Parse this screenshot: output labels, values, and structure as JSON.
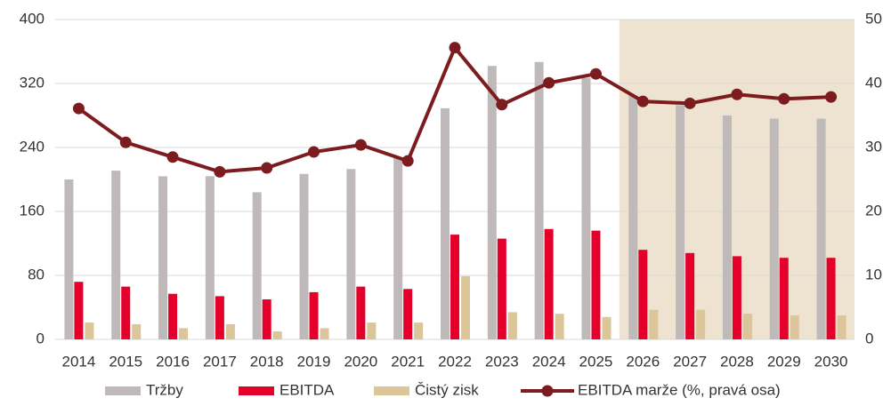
{
  "chart_data": {
    "type": "bar_line",
    "categories": [
      "2014",
      "2015",
      "2016",
      "2017",
      "2018",
      "2019",
      "2020",
      "2021",
      "2022",
      "2023",
      "2024",
      "2025",
      "2026",
      "2027",
      "2028",
      "2029",
      "2030"
    ],
    "series": [
      {
        "name": "Tržby",
        "color": "#bfb9b9",
        "values": [
          200,
          211,
          204,
          204,
          184,
          207,
          213,
          227,
          289,
          342,
          347,
          327,
          305,
          293,
          280,
          276,
          276
        ]
      },
      {
        "name": "EBITDA",
        "color": "#e4002b",
        "values": [
          72,
          66,
          57,
          54,
          50,
          59,
          66,
          63,
          131,
          126,
          138,
          136,
          112,
          108,
          104,
          102,
          102
        ]
      },
      {
        "name": "Čistý zisk",
        "color": "#dbc599",
        "values": [
          21,
          19,
          14,
          19,
          10,
          14,
          21,
          21,
          79,
          34,
          32,
          28,
          37,
          37,
          32,
          30,
          30
        ]
      },
      {
        "name": "EBITDA marže (%, pravá osa)",
        "color": "#7d1c1f",
        "axis": "y2",
        "type": "line",
        "values": [
          36.1,
          30.8,
          28.5,
          26.2,
          26.8,
          29.3,
          30.4,
          27.9,
          45.6,
          36.7,
          40.1,
          41.5,
          37.2,
          36.9,
          38.3,
          37.6,
          37.9
        ]
      }
    ],
    "ylim": [
      0,
      400
    ],
    "yticks": [
      0,
      80,
      160,
      240,
      320,
      400
    ],
    "y2lim": [
      0,
      50
    ],
    "y2ticks": [
      0,
      10,
      20,
      30,
      40,
      50
    ],
    "grid": true,
    "highlight_from": "2026",
    "highlight_color": "#ede3d0",
    "legend": "bottom"
  }
}
